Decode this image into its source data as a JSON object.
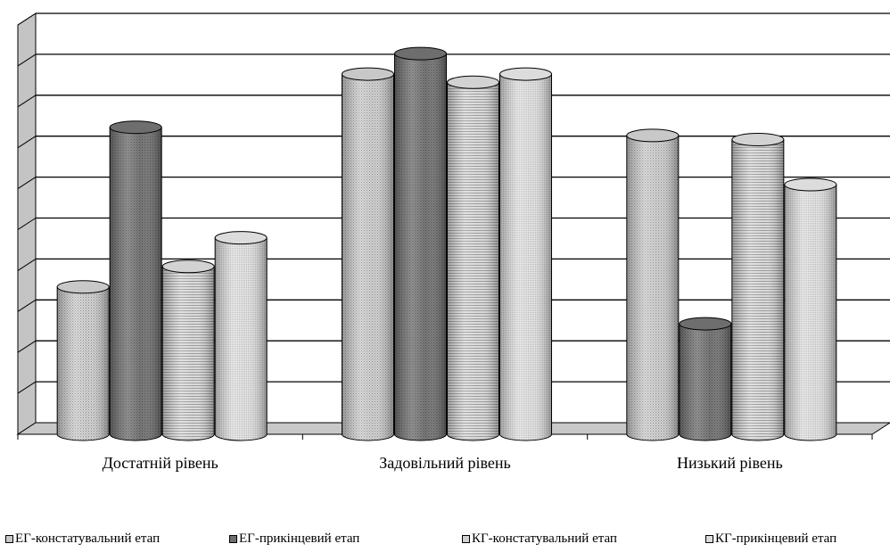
{
  "chart_data": {
    "type": "bar",
    "variant": "3d-cylinder",
    "title": "",
    "xlabel": "",
    "ylabel": "",
    "ylim": [
      0,
      10
    ],
    "grid": true,
    "legend_position": "bottom",
    "categories": [
      "Достатній рівень",
      "Задовільний рівень",
      "Низький рівень"
    ],
    "series": [
      {
        "name": "ЕГ-констатувальний етап",
        "values": [
          3.6,
          8.8,
          7.3
        ],
        "color": "#c8c8c8",
        "pattern": "dots"
      },
      {
        "name": "ЕГ-прикінцевий етап",
        "values": [
          7.5,
          9.3,
          2.7
        ],
        "color": "#6e6e6e",
        "pattern": "dark"
      },
      {
        "name": "КГ-констатувальний етап",
        "values": [
          4.1,
          8.6,
          7.2
        ],
        "color": "#d2d2d2",
        "pattern": "hlines"
      },
      {
        "name": "КГ-прикінцевий етап",
        "values": [
          4.8,
          8.8,
          6.1
        ],
        "color": "#dcdcdc",
        "pattern": "fine"
      }
    ]
  }
}
